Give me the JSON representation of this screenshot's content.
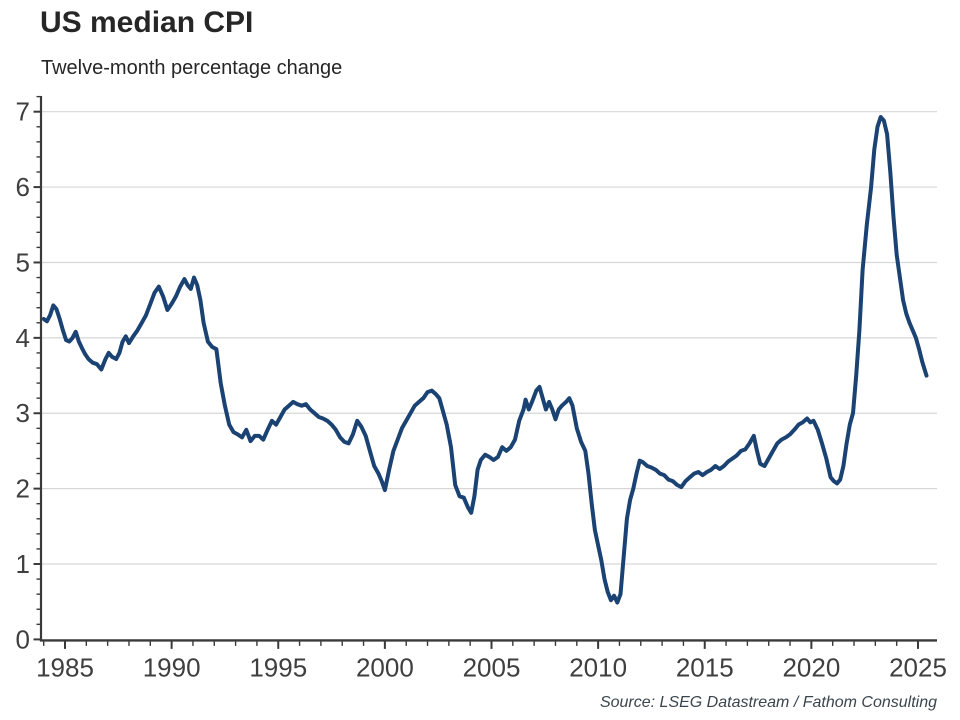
{
  "header": {
    "title": "US median CPI",
    "subtitle": "Twelve-month percentage change"
  },
  "footer": {
    "source": "Source: LSEG Datastream / Fathom Consulting"
  },
  "chart_data": {
    "type": "line",
    "title": "US median CPI",
    "subtitle": "Twelve-month percentage change",
    "xlabel": "",
    "ylabel": "",
    "xlim": [
      1983.95,
      2025.9
    ],
    "ylim": [
      0,
      7
    ],
    "grid": "horizontal",
    "legend": "none",
    "x_tick_labels": [
      "1985",
      "1990",
      "1995",
      "2000",
      "2005",
      "2010",
      "2015",
      "2020",
      "2025"
    ],
    "x_tick_values": [
      1985,
      1990,
      1995,
      2000,
      2005,
      2010,
      2015,
      2020,
      2025
    ],
    "x_minor_tick_step_years": 1,
    "y_tick_labels": [
      "0",
      "1",
      "2",
      "3",
      "4",
      "5",
      "6",
      "7"
    ],
    "y_tick_values": [
      0,
      1,
      2,
      3,
      4,
      5,
      6,
      7
    ],
    "y_minor_tick_step": 0.2,
    "colors": {
      "line": "#1a4273",
      "grid": "#d7d7d7",
      "axis": "#3a3a3a",
      "tick_label": "#3f3f3f",
      "title": "#262626",
      "source_text": "#3a454d",
      "background": "#ffffff"
    },
    "series": [
      {
        "name": "US median CPI, twelve-month percentage change",
        "points": [
          [
            1984.0,
            4.25
          ],
          [
            1984.15,
            4.22
          ],
          [
            1984.3,
            4.3
          ],
          [
            1984.45,
            4.43
          ],
          [
            1984.6,
            4.38
          ],
          [
            1984.75,
            4.25
          ],
          [
            1984.9,
            4.1
          ],
          [
            1985.05,
            3.97
          ],
          [
            1985.2,
            3.95
          ],
          [
            1985.35,
            4.0
          ],
          [
            1985.5,
            4.08
          ],
          [
            1985.65,
            3.95
          ],
          [
            1985.8,
            3.86
          ],
          [
            1985.95,
            3.78
          ],
          [
            1986.1,
            3.72
          ],
          [
            1986.3,
            3.67
          ],
          [
            1986.5,
            3.65
          ],
          [
            1986.7,
            3.58
          ],
          [
            1986.9,
            3.72
          ],
          [
            1987.05,
            3.8
          ],
          [
            1987.2,
            3.75
          ],
          [
            1987.4,
            3.72
          ],
          [
            1987.55,
            3.8
          ],
          [
            1987.7,
            3.95
          ],
          [
            1987.85,
            4.02
          ],
          [
            1988.0,
            3.93
          ],
          [
            1988.2,
            4.02
          ],
          [
            1988.4,
            4.1
          ],
          [
            1988.6,
            4.2
          ],
          [
            1988.8,
            4.3
          ],
          [
            1989.0,
            4.45
          ],
          [
            1989.2,
            4.6
          ],
          [
            1989.4,
            4.68
          ],
          [
            1989.6,
            4.55
          ],
          [
            1989.8,
            4.37
          ],
          [
            1990.0,
            4.45
          ],
          [
            1990.2,
            4.55
          ],
          [
            1990.4,
            4.68
          ],
          [
            1990.6,
            4.78
          ],
          [
            1990.75,
            4.7
          ],
          [
            1990.9,
            4.65
          ],
          [
            1991.05,
            4.8
          ],
          [
            1991.2,
            4.7
          ],
          [
            1991.35,
            4.5
          ],
          [
            1991.5,
            4.2
          ],
          [
            1991.7,
            3.95
          ],
          [
            1991.9,
            3.88
          ],
          [
            1992.1,
            3.85
          ],
          [
            1992.3,
            3.4
          ],
          [
            1992.5,
            3.1
          ],
          [
            1992.7,
            2.85
          ],
          [
            1992.9,
            2.75
          ],
          [
            1993.1,
            2.72
          ],
          [
            1993.3,
            2.68
          ],
          [
            1993.5,
            2.78
          ],
          [
            1993.7,
            2.63
          ],
          [
            1993.9,
            2.7
          ],
          [
            1994.1,
            2.7
          ],
          [
            1994.3,
            2.65
          ],
          [
            1994.5,
            2.78
          ],
          [
            1994.7,
            2.9
          ],
          [
            1994.9,
            2.85
          ],
          [
            1995.1,
            2.95
          ],
          [
            1995.3,
            3.05
          ],
          [
            1995.5,
            3.1
          ],
          [
            1995.7,
            3.15
          ],
          [
            1995.9,
            3.12
          ],
          [
            1996.1,
            3.1
          ],
          [
            1996.3,
            3.12
          ],
          [
            1996.5,
            3.05
          ],
          [
            1996.7,
            3.0
          ],
          [
            1996.9,
            2.95
          ],
          [
            1997.1,
            2.93
          ],
          [
            1997.3,
            2.9
          ],
          [
            1997.5,
            2.85
          ],
          [
            1997.7,
            2.78
          ],
          [
            1997.9,
            2.68
          ],
          [
            1998.1,
            2.62
          ],
          [
            1998.3,
            2.6
          ],
          [
            1998.5,
            2.72
          ],
          [
            1998.7,
            2.9
          ],
          [
            1998.9,
            2.82
          ],
          [
            1999.1,
            2.7
          ],
          [
            1999.3,
            2.5
          ],
          [
            1999.5,
            2.3
          ],
          [
            1999.7,
            2.2
          ],
          [
            1999.85,
            2.1
          ],
          [
            2000.0,
            1.98
          ],
          [
            2000.2,
            2.25
          ],
          [
            2000.4,
            2.5
          ],
          [
            2000.6,
            2.65
          ],
          [
            2000.8,
            2.8
          ],
          [
            2001.0,
            2.9
          ],
          [
            2001.2,
            3.0
          ],
          [
            2001.4,
            3.1
          ],
          [
            2001.6,
            3.15
          ],
          [
            2001.8,
            3.2
          ],
          [
            2002.0,
            3.28
          ],
          [
            2002.2,
            3.3
          ],
          [
            2002.4,
            3.25
          ],
          [
            2002.55,
            3.2
          ],
          [
            2002.7,
            3.05
          ],
          [
            2002.9,
            2.85
          ],
          [
            2003.1,
            2.55
          ],
          [
            2003.3,
            2.05
          ],
          [
            2003.5,
            1.9
          ],
          [
            2003.7,
            1.88
          ],
          [
            2003.9,
            1.75
          ],
          [
            2004.05,
            1.68
          ],
          [
            2004.2,
            1.9
          ],
          [
            2004.35,
            2.25
          ],
          [
            2004.5,
            2.38
          ],
          [
            2004.7,
            2.45
          ],
          [
            2004.9,
            2.42
          ],
          [
            2005.1,
            2.38
          ],
          [
            2005.3,
            2.42
          ],
          [
            2005.5,
            2.55
          ],
          [
            2005.7,
            2.5
          ],
          [
            2005.9,
            2.55
          ],
          [
            2006.1,
            2.65
          ],
          [
            2006.3,
            2.9
          ],
          [
            2006.5,
            3.05
          ],
          [
            2006.6,
            3.18
          ],
          [
            2006.75,
            3.05
          ],
          [
            2006.9,
            3.15
          ],
          [
            2007.1,
            3.3
          ],
          [
            2007.25,
            3.35
          ],
          [
            2007.4,
            3.2
          ],
          [
            2007.55,
            3.05
          ],
          [
            2007.7,
            3.15
          ],
          [
            2007.85,
            3.05
          ],
          [
            2008.0,
            2.92
          ],
          [
            2008.15,
            3.05
          ],
          [
            2008.3,
            3.1
          ],
          [
            2008.5,
            3.15
          ],
          [
            2008.65,
            3.2
          ],
          [
            2008.8,
            3.1
          ],
          [
            2009.0,
            2.8
          ],
          [
            2009.2,
            2.62
          ],
          [
            2009.4,
            2.5
          ],
          [
            2009.55,
            2.2
          ],
          [
            2009.7,
            1.8
          ],
          [
            2009.85,
            1.45
          ],
          [
            2010.0,
            1.25
          ],
          [
            2010.15,
            1.05
          ],
          [
            2010.3,
            0.8
          ],
          [
            2010.45,
            0.63
          ],
          [
            2010.6,
            0.52
          ],
          [
            2010.75,
            0.58
          ],
          [
            2010.9,
            0.49
          ],
          [
            2011.05,
            0.6
          ],
          [
            2011.2,
            1.1
          ],
          [
            2011.35,
            1.6
          ],
          [
            2011.5,
            1.85
          ],
          [
            2011.65,
            2.0
          ],
          [
            2011.8,
            2.2
          ],
          [
            2011.95,
            2.37
          ],
          [
            2012.1,
            2.35
          ],
          [
            2012.3,
            2.3
          ],
          [
            2012.5,
            2.28
          ],
          [
            2012.7,
            2.25
          ],
          [
            2012.9,
            2.2
          ],
          [
            2013.1,
            2.18
          ],
          [
            2013.3,
            2.12
          ],
          [
            2013.5,
            2.1
          ],
          [
            2013.7,
            2.05
          ],
          [
            2013.9,
            2.02
          ],
          [
            2014.1,
            2.1
          ],
          [
            2014.3,
            2.15
          ],
          [
            2014.5,
            2.2
          ],
          [
            2014.7,
            2.22
          ],
          [
            2014.9,
            2.18
          ],
          [
            2015.1,
            2.22
          ],
          [
            2015.3,
            2.25
          ],
          [
            2015.5,
            2.3
          ],
          [
            2015.7,
            2.26
          ],
          [
            2015.9,
            2.3
          ],
          [
            2016.1,
            2.36
          ],
          [
            2016.3,
            2.4
          ],
          [
            2016.5,
            2.44
          ],
          [
            2016.7,
            2.5
          ],
          [
            2016.9,
            2.52
          ],
          [
            2017.1,
            2.6
          ],
          [
            2017.3,
            2.7
          ],
          [
            2017.45,
            2.5
          ],
          [
            2017.6,
            2.33
          ],
          [
            2017.8,
            2.3
          ],
          [
            2018.0,
            2.4
          ],
          [
            2018.2,
            2.5
          ],
          [
            2018.4,
            2.6
          ],
          [
            2018.6,
            2.65
          ],
          [
            2018.8,
            2.68
          ],
          [
            2019.0,
            2.72
          ],
          [
            2019.2,
            2.78
          ],
          [
            2019.4,
            2.85
          ],
          [
            2019.6,
            2.88
          ],
          [
            2019.8,
            2.93
          ],
          [
            2019.95,
            2.88
          ],
          [
            2020.1,
            2.9
          ],
          [
            2020.3,
            2.78
          ],
          [
            2020.5,
            2.6
          ],
          [
            2020.7,
            2.4
          ],
          [
            2020.9,
            2.15
          ],
          [
            2021.05,
            2.1
          ],
          [
            2021.2,
            2.07
          ],
          [
            2021.35,
            2.12
          ],
          [
            2021.5,
            2.3
          ],
          [
            2021.65,
            2.6
          ],
          [
            2021.8,
            2.85
          ],
          [
            2021.95,
            3.0
          ],
          [
            2022.1,
            3.5
          ],
          [
            2022.25,
            4.1
          ],
          [
            2022.4,
            4.9
          ],
          [
            2022.6,
            5.5
          ],
          [
            2022.8,
            6.0
          ],
          [
            2022.95,
            6.5
          ],
          [
            2023.1,
            6.8
          ],
          [
            2023.25,
            6.93
          ],
          [
            2023.4,
            6.88
          ],
          [
            2023.55,
            6.7
          ],
          [
            2023.7,
            6.2
          ],
          [
            2023.85,
            5.6
          ],
          [
            2024.0,
            5.1
          ],
          [
            2024.15,
            4.8
          ],
          [
            2024.3,
            4.5
          ],
          [
            2024.45,
            4.32
          ],
          [
            2024.6,
            4.2
          ],
          [
            2024.75,
            4.1
          ],
          [
            2024.9,
            4.0
          ],
          [
            2025.05,
            3.85
          ],
          [
            2025.2,
            3.68
          ],
          [
            2025.4,
            3.5
          ]
        ]
      }
    ]
  }
}
